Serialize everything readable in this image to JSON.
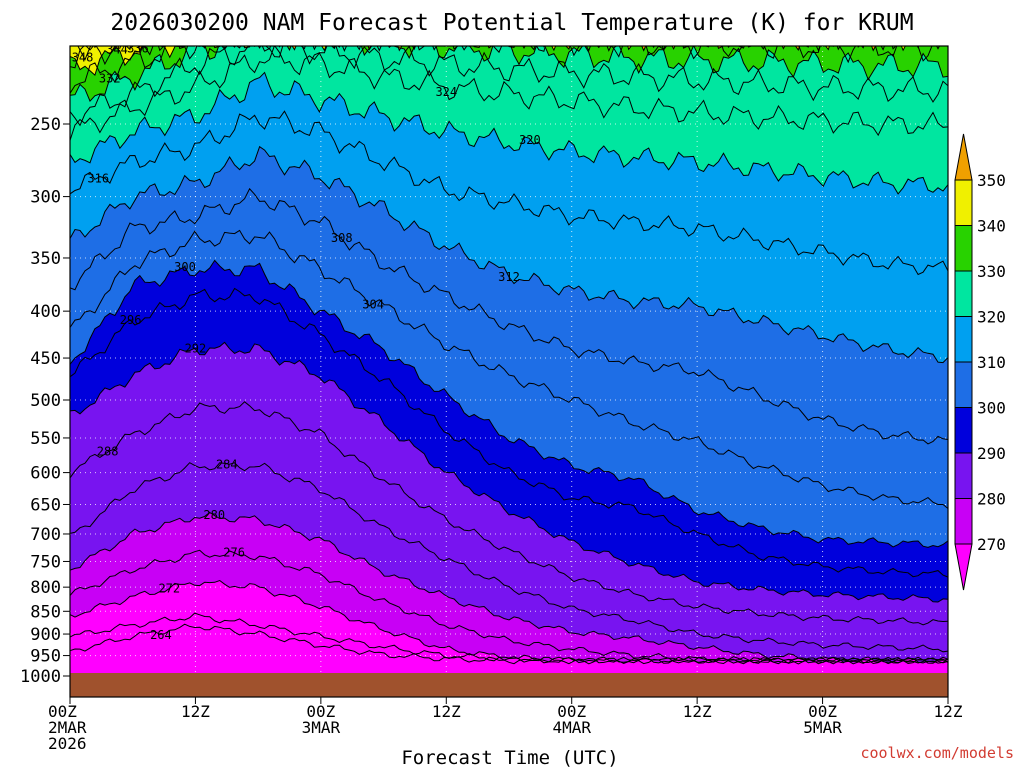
{
  "title": "2026030200 NAM Forecast Potential Temperature (K) for KRUM",
  "credit": "coolwx.com/models",
  "chart_data": {
    "type": "filled-contour",
    "variable": "Potential Temperature (K)",
    "station": "KRUM",
    "model": "NAM",
    "init": "2026030200",
    "xlabel": "Forecast Time (UTC)",
    "x_range_hours": [
      0,
      84
    ],
    "x_ticks": [
      {
        "hour": 0,
        "lines": [
          "00Z",
          "2MAR",
          "2026"
        ]
      },
      {
        "hour": 12,
        "lines": [
          "12Z"
        ]
      },
      {
        "hour": 24,
        "lines": [
          "00Z",
          "3MAR"
        ]
      },
      {
        "hour": 36,
        "lines": [
          "12Z"
        ]
      },
      {
        "hour": 48,
        "lines": [
          "00Z",
          "4MAR"
        ]
      },
      {
        "hour": 60,
        "lines": [
          "12Z"
        ]
      },
      {
        "hour": 72,
        "lines": [
          "00Z",
          "5MAR"
        ]
      },
      {
        "hour": 84,
        "lines": [
          "12Z"
        ]
      }
    ],
    "y_range_hpa": [
      1040,
      200
    ],
    "y_ticks": [
      "250",
      "300",
      "350",
      "400",
      "450",
      "500",
      "550",
      "600",
      "650",
      "700",
      "750",
      "800",
      "850",
      "900",
      "950",
      "1000"
    ],
    "colorbar_labels": [
      "350",
      "340",
      "330",
      "320",
      "310",
      "300",
      "290",
      "280",
      "270"
    ],
    "fill_levels": [
      270,
      280,
      290,
      300,
      310,
      320,
      330,
      340,
      350
    ],
    "fill_colors": [
      "#ff00ff",
      "#c800f5",
      "#7814f0",
      "#0000dc",
      "#1e6ee6",
      "#00a0f0",
      "#00e6a0",
      "#28d200",
      "#f0f000",
      "#f0a000"
    ],
    "ground_color": "#a0522d",
    "contour_interval": 4,
    "isentropes": [
      {
        "k": 264,
        "hpa": [
          940,
          905,
          882,
          900,
          926,
          948,
          958,
          962,
          962,
          962,
          962,
          962,
          962,
          962,
          962
        ],
        "label": "264",
        "lh": 8.7
      },
      {
        "k": 268,
        "hpa": [
          905,
          880,
          860,
          880,
          905,
          930,
          950,
          958,
          962,
          962,
          962,
          962,
          962,
          962,
          962
        ]
      },
      {
        "k": 272,
        "hpa": [
          860,
          820,
          790,
          800,
          840,
          890,
          935,
          955,
          960,
          962,
          962,
          962,
          962,
          962,
          962
        ],
        "label": "272",
        "lh": 9.5
      },
      {
        "k": 276,
        "hpa": [
          815,
          765,
          735,
          740,
          775,
          830,
          880,
          915,
          935,
          950,
          958,
          962,
          962,
          962,
          962
        ],
        "label": "276",
        "lh": 15.7
      },
      {
        "k": 280,
        "hpa": [
          765,
          700,
          670,
          675,
          710,
          770,
          820,
          865,
          895,
          910,
          930,
          948,
          958,
          962,
          962
        ],
        "label": "280",
        "lh": 13.8
      },
      {
        "k": 284,
        "hpa": [
          705,
          625,
          590,
          590,
          625,
          690,
          745,
          800,
          845,
          870,
          900,
          915,
          925,
          930,
          935
        ],
        "label": "284",
        "lh": 15.0
      },
      {
        "k": 288,
        "hpa": [
          600,
          545,
          510,
          510,
          545,
          610,
          675,
          730,
          780,
          815,
          840,
          855,
          865,
          870,
          875
        ],
        "label": "288",
        "lh": 3.6
      },
      {
        "k": 292,
        "hpa": [
          520,
          470,
          440,
          440,
          470,
          530,
          600,
          660,
          715,
          755,
          790,
          805,
          815,
          820,
          825
        ],
        "label": "292",
        "lh": 12.0
      },
      {
        "k": 296,
        "hpa": [
          470,
          410,
          385,
          385,
          425,
          475,
          540,
          600,
          640,
          655,
          700,
          740,
          760,
          770,
          775
        ],
        "label": "296",
        "lh": 5.8
      },
      {
        "k": 300,
        "hpa": [
          455,
          375,
          360,
          360,
          400,
          440,
          495,
          550,
          590,
          610,
          660,
          690,
          710,
          715,
          720
        ],
        "label": "300",
        "lh": 11.0
      },
      {
        "k": 304,
        "hpa": [
          420,
          355,
          335,
          330,
          360,
          395,
          435,
          470,
          500,
          530,
          555,
          590,
          620,
          640,
          650
        ],
        "label": "304",
        "lh": 29.0
      },
      {
        "k": 308,
        "hpa": [
          375,
          325,
          315,
          300,
          320,
          355,
          385,
          415,
          440,
          455,
          465,
          495,
          525,
          545,
          555
        ],
        "label": "308",
        "lh": 26.0
      },
      {
        "k": 312,
        "hpa": [
          335,
          300,
          290,
          270,
          285,
          310,
          340,
          365,
          380,
          390,
          395,
          410,
          425,
          440,
          450
        ],
        "label": "312",
        "lh": 42.0
      },
      {
        "k": 316,
        "hpa": [
          295,
          275,
          265,
          245,
          255,
          275,
          295,
          305,
          315,
          320,
          325,
          335,
          345,
          355,
          360
        ],
        "label": "316",
        "lh": 2.7
      },
      {
        "k": 320,
        "hpa": [
          275,
          255,
          245,
          225,
          235,
          245,
          255,
          262,
          268,
          272,
          275,
          280,
          285,
          290,
          292
        ],
        "label": "320",
        "lh": 44.0
      },
      {
        "k": 324,
        "hpa": [
          255,
          240,
          228,
          212,
          215,
          222,
          228,
          232,
          236,
          240,
          243,
          246,
          248,
          250,
          251
        ],
        "label": "324",
        "lh": 36.0
      },
      {
        "k": 328,
        "hpa": [
          245,
          232,
          215,
          205,
          208,
          212,
          215,
          218,
          220,
          222,
          224,
          226,
          228,
          229,
          230
        ]
      },
      {
        "k": 332,
        "hpa": [
          235,
          222,
          208,
          200,
          200,
          204,
          206,
          208,
          210,
          212,
          213,
          214,
          215,
          216,
          216
        ],
        "label": "332",
        "lh": 3.8
      },
      {
        "k": 336,
        "hpa": [
          225,
          214,
          204,
          200,
          200,
          200,
          201,
          202,
          203,
          204,
          205,
          205,
          206,
          206,
          206
        ],
        "label": "336",
        "lh": 6.5
      },
      {
        "k": 340,
        "hpa": [
          218,
          208,
          201,
          200,
          200,
          200,
          200,
          200,
          200,
          200,
          200,
          200,
          200,
          200,
          200
        ]
      },
      {
        "k": 344,
        "hpa": [
          212,
          204,
          200,
          200,
          200,
          200,
          200,
          200,
          200,
          200,
          200,
          200,
          200,
          200,
          200
        ],
        "label": "344",
        "lh": 4.5
      },
      {
        "k": 348,
        "hpa": [
          206,
          201,
          200,
          200,
          200,
          200,
          200,
          200,
          200,
          200,
          200,
          200,
          200,
          200,
          200
        ],
        "label": "348",
        "lh": 1.2
      },
      {
        "k": 352,
        "hpa": [
          202,
          200,
          200,
          200,
          200,
          200,
          200,
          200,
          200,
          200,
          200,
          200,
          200,
          200,
          200
        ],
        "label": "352",
        "lh": 1.2
      }
    ],
    "isentrope_hours": [
      0,
      6,
      12,
      18,
      24,
      30,
      36,
      42,
      48,
      54,
      60,
      66,
      72,
      78,
      84
    ]
  }
}
